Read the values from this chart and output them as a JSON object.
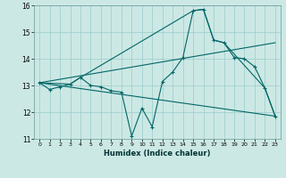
{
  "xlabel": "Humidex (Indice chaleur)",
  "ylabel": "",
  "bg_color": "#cce8e4",
  "grid_color": "#99cccc",
  "line_color": "#006666",
  "xlim": [
    -0.5,
    23.5
  ],
  "ylim": [
    11,
    16
  ],
  "yticks": [
    11,
    12,
    13,
    14,
    15,
    16
  ],
  "xticks": [
    0,
    1,
    2,
    3,
    4,
    5,
    6,
    7,
    8,
    9,
    10,
    11,
    12,
    13,
    14,
    15,
    16,
    17,
    18,
    19,
    20,
    21,
    22,
    23
  ],
  "line1_x": [
    0,
    1,
    2,
    3,
    4,
    5,
    6,
    7,
    8,
    9,
    10,
    11,
    12,
    13,
    14,
    15,
    16,
    17,
    18,
    19,
    20,
    21,
    22,
    23
  ],
  "line1_y": [
    13.1,
    12.85,
    12.95,
    13.05,
    13.3,
    13.0,
    12.95,
    12.8,
    12.75,
    11.1,
    12.15,
    11.45,
    13.15,
    13.5,
    14.05,
    15.8,
    15.85,
    14.7,
    14.6,
    14.05,
    14.0,
    13.7,
    12.9,
    11.85
  ],
  "line2_x": [
    0,
    3,
    4,
    15,
    16,
    17,
    18,
    22,
    23
  ],
  "line2_y": [
    13.1,
    13.05,
    13.3,
    15.8,
    15.85,
    14.7,
    14.6,
    12.9,
    11.85
  ],
  "line3_x": [
    0,
    23
  ],
  "line3_y": [
    13.1,
    11.85
  ],
  "line4_x": [
    0,
    23
  ],
  "line4_y": [
    13.1,
    14.6
  ]
}
